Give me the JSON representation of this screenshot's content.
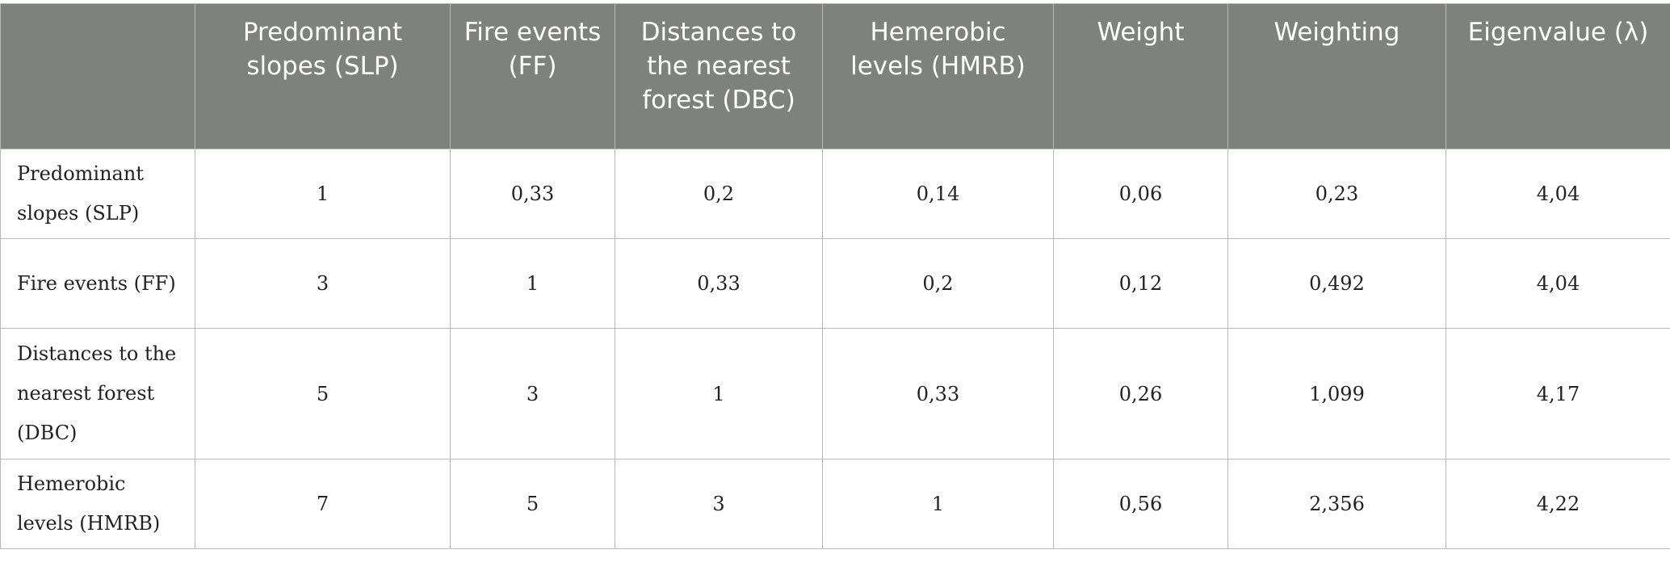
{
  "table": {
    "headers": [
      "",
      "Predominant slopes (SLP)",
      "Fire events (FF)",
      "Distances to the nearest forest (DBC)",
      "Hemerobic levels (HMRB)",
      "Weight",
      "Weighting",
      "Eigenvalue (λ)"
    ],
    "rows": [
      {
        "label": "Predominant slopes (SLP)",
        "cells": [
          "1",
          "0,33",
          "0,2",
          "0,14",
          "0,06",
          "0,23",
          "4,04"
        ]
      },
      {
        "label": "Fire events (FF)",
        "cells": [
          "3",
          "1",
          "0,33",
          "0,2",
          "0,12",
          "0,492",
          "4,04"
        ]
      },
      {
        "label": "Distances to the nearest forest (DBC)",
        "cells": [
          "5",
          "3",
          "1",
          "0,33",
          "0,26",
          "1,099",
          "4,17"
        ]
      },
      {
        "label": "Hemerobic levels (HMRB)",
        "cells": [
          "7",
          "5",
          "3",
          "1",
          "0,56",
          "2,356",
          "4,22"
        ]
      }
    ]
  },
  "colors": {
    "header_background": "#7f817f",
    "header_text": "#ffffff",
    "border": "#b9b9b9"
  }
}
